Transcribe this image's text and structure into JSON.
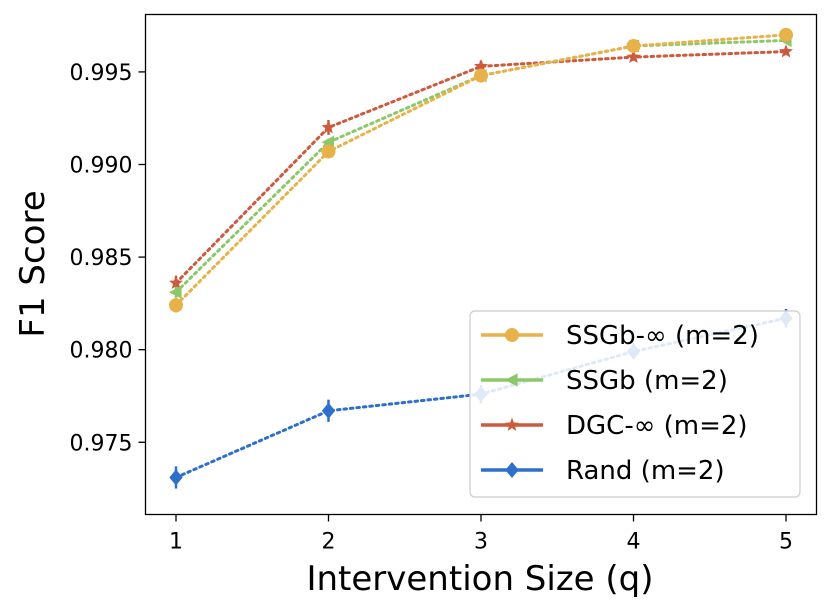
{
  "chart_data": {
    "type": "line",
    "title": "",
    "xlabel": "Intervention Size (q)",
    "ylabel": "F1 Score",
    "x": [
      1,
      2,
      3,
      4,
      5
    ],
    "xlim": [
      0.8,
      5.2
    ],
    "ylim": [
      0.9711,
      0.9981
    ],
    "xticks": [
      1,
      2,
      3,
      4,
      5
    ],
    "yticks": [
      0.975,
      0.98,
      0.985,
      0.99,
      0.995
    ],
    "ytick_labels": [
      "0.975",
      "0.980",
      "0.985",
      "0.990",
      "0.995"
    ],
    "legend_position": "lower-right",
    "grid": false,
    "series": [
      {
        "name": "SSGb-∞ (m=2)",
        "color": "#e8b24a",
        "marker": "circle",
        "values": [
          0.9824,
          0.9907,
          0.9948,
          0.9964,
          0.997
        ],
        "errors": [
          0.0004,
          0.0002,
          0.0002,
          0.0002,
          0.0001
        ]
      },
      {
        "name": "SSGb (m=2)",
        "color": "#8cc86a",
        "marker": "triangle-left",
        "values": [
          0.9831,
          0.9912,
          0.9948,
          0.9964,
          0.9967
        ],
        "errors": [
          0.0003,
          0.0002,
          0.0002,
          0.0002,
          0.0001
        ]
      },
      {
        "name": "DGC-∞ (m=2)",
        "color": "#cd5a3c",
        "marker": "star",
        "values": [
          0.9836,
          0.992,
          0.9953,
          0.9958,
          0.9961
        ],
        "errors": [
          0.0004,
          0.0004,
          0.0003,
          0.0002,
          0.0002
        ]
      },
      {
        "name": "Rand (m=2)",
        "color": "#2e6fcc",
        "marker": "diamond",
        "values": [
          0.9731,
          0.9767,
          0.9776,
          0.9799,
          0.9817
        ],
        "errors": [
          0.0006,
          0.0006,
          0.0005,
          0.0004,
          0.0005
        ]
      }
    ]
  }
}
